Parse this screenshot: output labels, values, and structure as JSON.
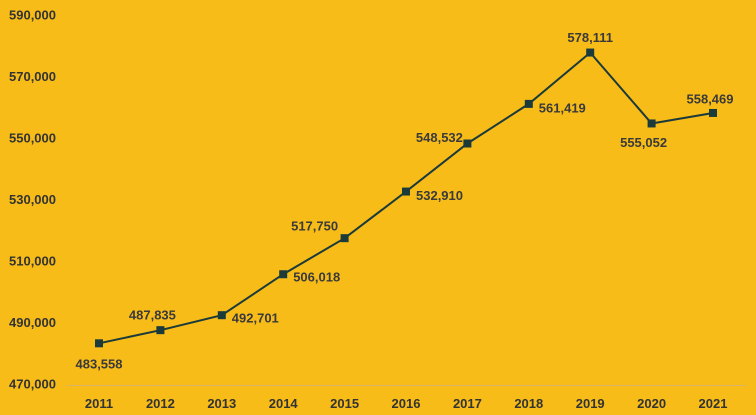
{
  "chart_data": {
    "type": "line",
    "title": "",
    "xlabel": "",
    "ylabel": "",
    "categories": [
      "2011",
      "2012",
      "2013",
      "2014",
      "2015",
      "2016",
      "2017",
      "2018",
      "2019",
      "2020",
      "2021"
    ],
    "series": [
      {
        "values": [
          483558,
          487835,
          492701,
          506018,
          517750,
          532910,
          548532,
          561419,
          578111,
          555052,
          558469
        ],
        "labels": [
          "483,558",
          "487,835",
          "492,701",
          "506,018",
          "517,750",
          "532,910",
          "548,532",
          "561,419",
          "578,111",
          "555,052",
          "558,469"
        ],
        "color": "#1B3A3A",
        "marker": "square"
      }
    ],
    "ylim": [
      470000,
      590000
    ],
    "yticks": [
      470000,
      490000,
      510000,
      530000,
      550000,
      570000,
      590000
    ],
    "ytick_labels": [
      "470,000",
      "490,000",
      "510,000",
      "530,000",
      "550,000",
      "570,000",
      "590,000"
    ],
    "grid": false,
    "legend": "none",
    "background": "#F7BC18",
    "axis_color": "#D9B36A"
  }
}
